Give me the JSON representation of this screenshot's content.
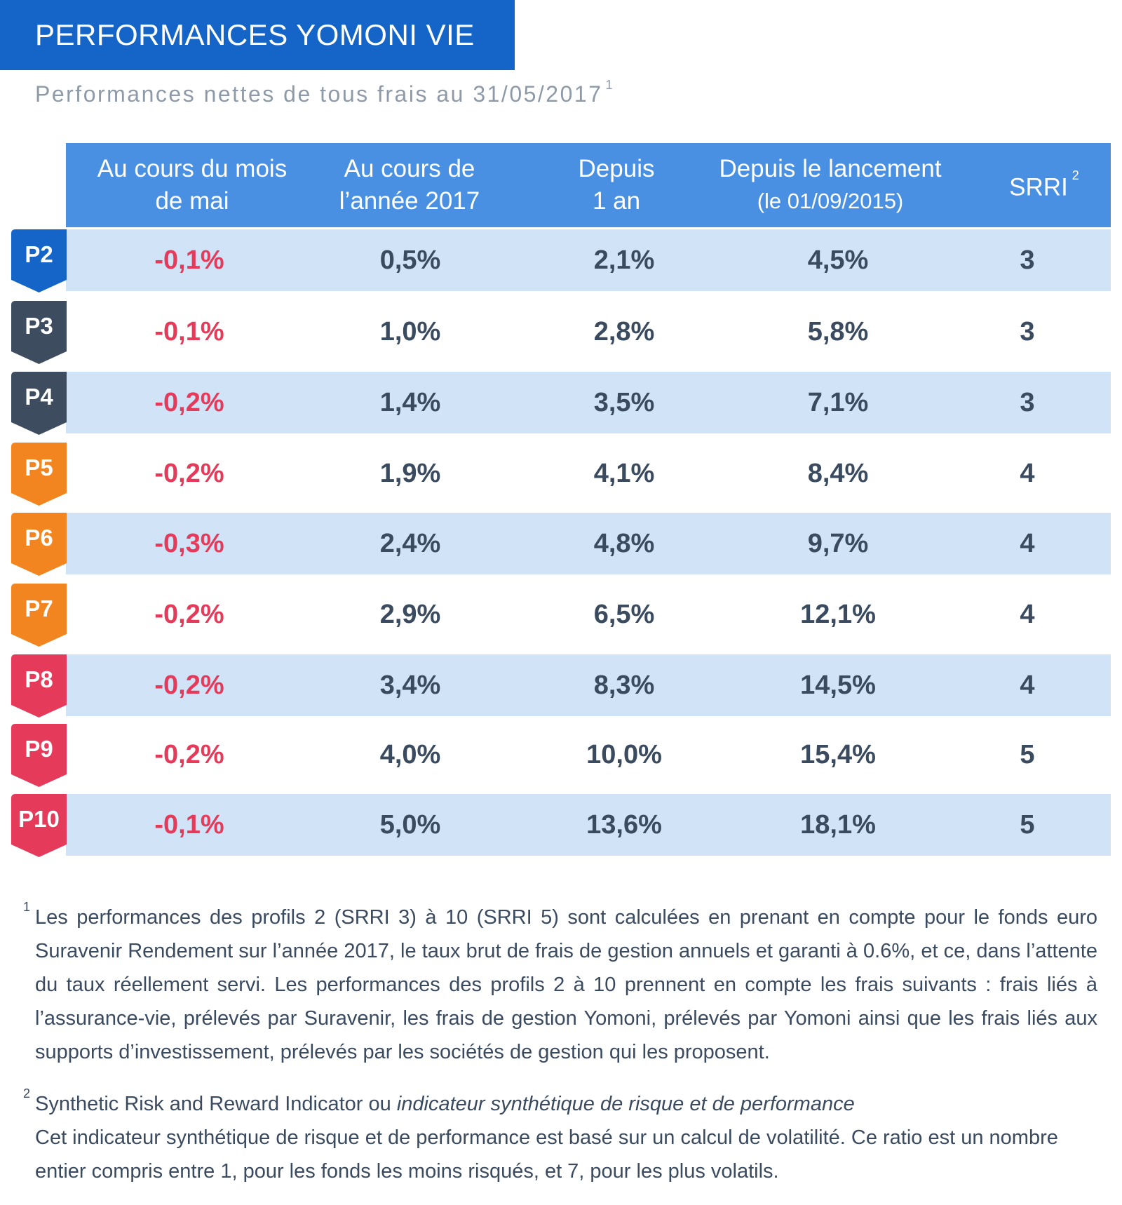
{
  "header": {
    "title": "PERFORMANCES YOMONI VIE",
    "subtitle": "Performances nettes de tous frais au 31/05/2017",
    "subtitle_note": "1"
  },
  "table": {
    "columns": {
      "col1_line1": "Au cours du mois",
      "col1_line2": "de mai",
      "col2_line1": "Au cours de",
      "col2_line2": "l’année 2017",
      "col3_line1": "Depuis",
      "col3_line2": "1 an",
      "col4_line1": "Depuis le lancement",
      "col4_line2": "(le 01/09/2015)",
      "col5": "SRRI",
      "col5_note": "2"
    },
    "rows": [
      {
        "profile": "P2",
        "color": "#1565c8",
        "mois": "-0,1%",
        "annee": "0,5%",
        "un_an": "2,1%",
        "lancement": "4,5%",
        "srri": "3"
      },
      {
        "profile": "P3",
        "color": "#3d4d5f",
        "mois": "-0,1%",
        "annee": "1,0%",
        "un_an": "2,8%",
        "lancement": "5,8%",
        "srri": "3"
      },
      {
        "profile": "P4",
        "color": "#3d4d5f",
        "mois": "-0,2%",
        "annee": "1,4%",
        "un_an": "3,5%",
        "lancement": "7,1%",
        "srri": "3"
      },
      {
        "profile": "P5",
        "color": "#f2851f",
        "mois": "-0,2%",
        "annee": "1,9%",
        "un_an": "4,1%",
        "lancement": "8,4%",
        "srri": "4"
      },
      {
        "profile": "P6",
        "color": "#f2851f",
        "mois": "-0,3%",
        "annee": "2,4%",
        "un_an": "4,8%",
        "lancement": "9,7%",
        "srri": "4"
      },
      {
        "profile": "P7",
        "color": "#f2851f",
        "mois": "-0,2%",
        "annee": "2,9%",
        "un_an": "6,5%",
        "lancement": "12,1%",
        "srri": "4"
      },
      {
        "profile": "P8",
        "color": "#e63a5a",
        "mois": "-0,2%",
        "annee": "3,4%",
        "un_an": "8,3%",
        "lancement": "14,5%",
        "srri": "4"
      },
      {
        "profile": "P9",
        "color": "#e63a5a",
        "mois": "-0,2%",
        "annee": "4,0%",
        "un_an": "10,0%",
        "lancement": "15,4%",
        "srri": "5"
      },
      {
        "profile": "P10",
        "color": "#e63a5a",
        "mois": "-0,1%",
        "annee": "5,0%",
        "un_an": "13,6%",
        "lancement": "18,1%",
        "srri": "5"
      }
    ]
  },
  "footnotes": {
    "note1_mark": "1",
    "note1_text": "Les performances des profils 2 (SRRI 3) à 10 (SRRI 5) sont calculées en prenant en compte pour le fonds euro Suravenir Rendement sur l’année 2017, le taux brut de frais de gestion annuels et garanti à 0.6%, et ce, dans l’attente du taux réellement servi. Les performances des profils 2 à 10 prennent en compte les frais suivants : frais liés à l’assurance-vie, prélevés par Suravenir, les frais de gestion Yomoni, prélevés par Yomoni ainsi que les frais liés aux supports d’investissement, prélevés par les sociétés de gestion qui les proposent.",
    "note2_mark": "2",
    "note2_title": "Synthetic Risk and Reward Indicator ou ",
    "note2_title_italic": "indicateur synthétique de risque et de performance",
    "note2_text": "Cet indicateur synthétique de risque et de performance est basé sur un calcul de volatilité. Ce ratio est un nombre entier compris entre 1, pour les fonds les moins risqués, et 7, pour les plus volatils."
  }
}
